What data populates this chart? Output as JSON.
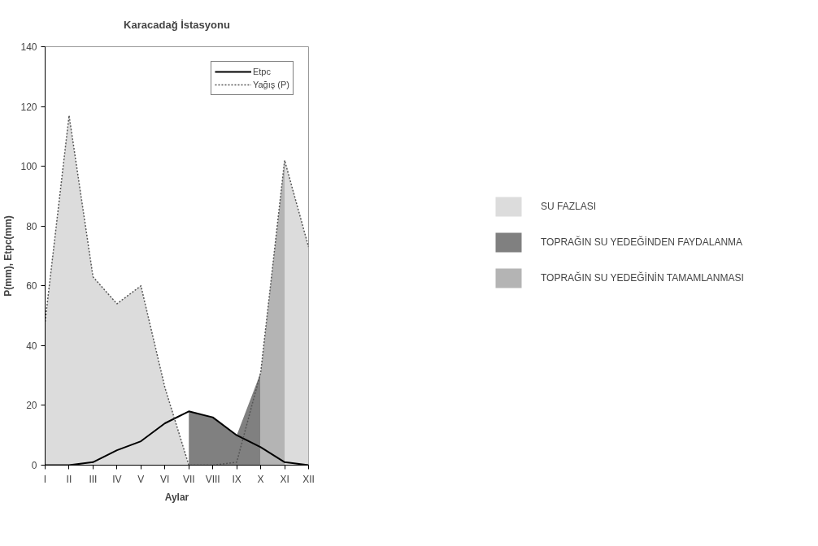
{
  "chart_data": {
    "type": "line",
    "title": "Karacadağ İstasyonu",
    "xlabel": "Aylar",
    "ylabel": "P(mm), Etpc(mm)",
    "categories": [
      "I",
      "II",
      "III",
      "IV",
      "V",
      "VI",
      "VII",
      "VIII",
      "IX",
      "X",
      "XI",
      "XII"
    ],
    "ylim": [
      0,
      140
    ],
    "yticks": [
      0,
      20,
      40,
      60,
      80,
      100,
      120,
      140
    ],
    "grid": false,
    "legend": "right",
    "marker": "none",
    "series": [
      {
        "type": "area",
        "name": "SU FAZLASI",
        "color": "#dcdcdc",
        "values": [
          48,
          117,
          63,
          54,
          60,
          26,
          0,
          null,
          null,
          null,
          102,
          73
        ]
      },
      {
        "type": "area",
        "name": "TOPRAĞIN SU YEDEĞİNDEN FAYDALANMA",
        "color": "#808080",
        "values": [
          null,
          null,
          null,
          null,
          null,
          null,
          18,
          16,
          10,
          31,
          null,
          null
        ]
      },
      {
        "type": "area",
        "name": "TOPRAĞIN SU YEDEĞİNİN TAMAMLANMASI",
        "color": "#b4b4b4",
        "values": [
          null,
          null,
          null,
          null,
          null,
          null,
          null,
          null,
          null,
          31,
          102,
          null
        ]
      },
      {
        "name": "Etpc",
        "color": "#000000",
        "line_style": "solid",
        "values": [
          0,
          0,
          1,
          5,
          8,
          14,
          18,
          16,
          10,
          6,
          1,
          0
        ]
      },
      {
        "name": "Yağış (P)",
        "color": "#555555",
        "line_style": "dashed",
        "values": [
          48,
          117,
          63,
          54,
          60,
          26,
          0,
          0,
          1,
          31,
          102,
          73
        ]
      }
    ]
  }
}
